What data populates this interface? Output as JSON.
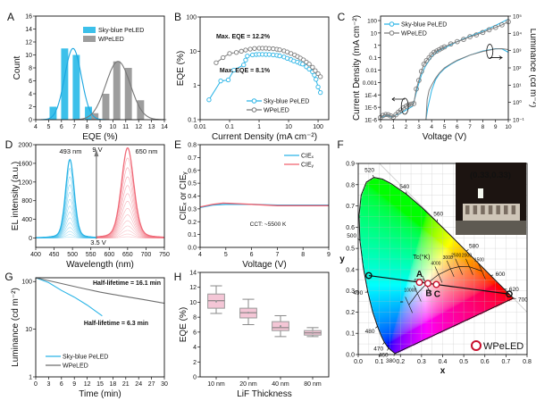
{
  "chart_data": [
    {
      "panel": "A",
      "type": "bar",
      "title": "",
      "xlabel": "EQE (%)",
      "ylabel": "Count",
      "xlim": [
        4,
        14
      ],
      "ylim": [
        0,
        16
      ],
      "x_ticks": [
        "4",
        "5",
        "6",
        "7",
        "8",
        "9",
        "10",
        "11",
        "12",
        "13",
        "14"
      ],
      "y_ticks": [
        "0",
        "2",
        "4",
        "6",
        "8",
        "10",
        "12",
        "14",
        "16"
      ],
      "legend": "top-center",
      "series": [
        {
          "name": "Sky-blue PeLED",
          "color": "#3cc0ea",
          "x": [
            5.35,
            6.25,
            7.15,
            8.1
          ],
          "values": [
            2,
            11,
            10,
            2
          ],
          "fit": {
            "type": "gaussian",
            "center": 6.9,
            "sigma": 0.65,
            "peak": 11,
            "color": "#1aa6e0"
          }
        },
        {
          "name": "WPeLED",
          "color": "#9d9d9d",
          "x": [
            8.6,
            9.45,
            10.3,
            11.2,
            12.15
          ],
          "values": [
            1,
            4,
            9,
            8,
            3
          ],
          "fit": {
            "type": "gaussian",
            "center": 10.4,
            "sigma": 0.95,
            "peak": 9,
            "color": "#777777"
          }
        }
      ]
    },
    {
      "panel": "B",
      "type": "line",
      "title": "",
      "xlabel": "Current Density (mA cm⁻²)",
      "ylabel": "EQE (%)",
      "xscale": "log",
      "yscale": "log",
      "xlim": [
        0.01,
        230
      ],
      "ylim": [
        0.1,
        100
      ],
      "x_ticks": [
        "0.01",
        "0.1",
        "1",
        "10",
        "100"
      ],
      "y_ticks": [
        "0.1",
        "1",
        "10",
        "100"
      ],
      "legend": "bottom-center",
      "annotations": [
        {
          "text": "Max. EQE = 12.2%",
          "color": "#8c8c8c"
        },
        {
          "text": "Max. EQE = 8.1%",
          "color": "#2ab4e6"
        }
      ],
      "series": [
        {
          "name": "Sky-blue PeLED",
          "color": "#2ab4e6",
          "x": [
            0.02,
            0.05,
            0.09,
            0.14,
            0.3,
            0.35,
            0.4,
            0.6,
            0.8,
            1,
            1.3,
            1.7,
            2.2,
            3,
            4,
            5,
            7,
            9,
            12,
            15,
            20,
            25,
            30,
            40,
            50,
            65,
            75,
            85,
            100,
            120
          ],
          "y": [
            0.38,
            1.35,
            1.45,
            2.8,
            4,
            5.5,
            7.2,
            7.8,
            8,
            8.1,
            8.1,
            8,
            8,
            7.8,
            7.6,
            7.3,
            6.8,
            6.2,
            5.7,
            5.2,
            4.8,
            4.4,
            4.2,
            3.5,
            3,
            2.5,
            2,
            1.5,
            0.9,
            0.62
          ]
        },
        {
          "name": "WPeLED",
          "color": "#7a7a7a",
          "x": [
            0.035,
            0.06,
            0.1,
            0.17,
            0.25,
            0.35,
            0.5,
            0.7,
            1,
            1.3,
            1.7,
            2.2,
            3,
            4,
            5,
            7,
            9,
            12,
            16,
            20,
            25,
            32,
            40,
            50,
            65,
            80,
            100,
            120
          ],
          "y": [
            4.6,
            6.5,
            8.6,
            9.2,
            10,
            10.8,
            11.5,
            12,
            12.2,
            12.2,
            12.2,
            12,
            11.8,
            11.4,
            11,
            10.3,
            9.5,
            8.6,
            7.8,
            7,
            6.3,
            5.6,
            4.8,
            4.2,
            3.4,
            2.7,
            2.2,
            1.8
          ]
        }
      ]
    },
    {
      "panel": "C",
      "type": "line",
      "title": "",
      "xlabel": "Voltage (V)",
      "ylabel": "Current Density (mA cm⁻²)",
      "y2label": "Luminance (cd m⁻²)",
      "xlim": [
        0,
        10
      ],
      "ylim": [
        1e-06,
        230
      ],
      "yscale": "log",
      "y2lim": [
        0.1,
        100000
      ],
      "y2scale": "log",
      "x_ticks": [
        "0",
        "1",
        "2",
        "3",
        "4",
        "5",
        "6",
        "7",
        "8",
        "9",
        "10"
      ],
      "y_ticks": [
        "1E-6",
        "1E-5",
        "1E-4",
        "0.001",
        "0.01",
        "0.1",
        "1",
        "10",
        "100"
      ],
      "y2_ticks": [
        0.1,
        1,
        10,
        100,
        1000,
        10000,
        100000
      ],
      "y2_tick_labels": [
        "10⁻¹",
        "10⁰",
        "10¹",
        "10²",
        "10³",
        "10⁴",
        "10⁵"
      ],
      "legend": "top-left",
      "series": [
        {
          "name": "Sky-blue PeLED",
          "color": "#2ab4e6",
          "axis": "left",
          "x": [
            0,
            0.5,
            0.9,
            1,
            1.5,
            2,
            2.5,
            2.7,
            2.9,
            3.2,
            3.5,
            4,
            4.5,
            5,
            6,
            7,
            8,
            9,
            10
          ],
          "y": [
            1.5e-06,
            2.2e-06,
            1.6e-06,
            2e-06,
            3e-06,
            6e-06,
            1.2e-05,
            6e-05,
            0.0004,
            0.004,
            0.02,
            0.12,
            0.35,
            0.6,
            2,
            5.5,
            14,
            40,
            130
          ]
        },
        {
          "name": "WPeLED",
          "color": "#7a7a7a",
          "axis": "left",
          "x": [
            0,
            0.2,
            0.4,
            0.6,
            0.8,
            1,
            1.2,
            1.4,
            1.6,
            1.8,
            2,
            2.2,
            2.4,
            2.6,
            2.8,
            3,
            3.2,
            3.4,
            3.6,
            3.8,
            4,
            4.2,
            4.4,
            4.6,
            4.8,
            5,
            5.5,
            6,
            6.5,
            7,
            7.5,
            8,
            8.5,
            9,
            9.5,
            10
          ],
          "y": [
            1.5e-06,
            2.2e-06,
            2.6e-06,
            2.5e-06,
            2e-06,
            1.6e-06,
            2.5e-06,
            4e-06,
            6e-06,
            9e-06,
            1.2e-05,
            1.6e-05,
            1.8e-05,
            2e-05,
            0.0003,
            0.0015,
            0.008,
            0.03,
            0.06,
            0.1,
            0.18,
            0.28,
            0.35,
            0.45,
            0.6,
            0.75,
            1.3,
            2,
            3,
            5,
            7,
            11,
            18,
            28,
            45,
            80
          ]
        },
        {
          "name": "Sky-blue PeLED",
          "color": "#2ab4e6",
          "axis": "right",
          "x": [
            3.55,
            3.7,
            4,
            4.3,
            4.6,
            5,
            5.5,
            6,
            7,
            8,
            9,
            9.5,
            10
          ],
          "y": [
            0.1,
            0.5,
            5,
            20,
            45,
            90,
            160,
            260,
            550,
            950,
            1300,
            1250,
            800
          ]
        },
        {
          "name": "WPeLED",
          "color": "#7a7a7a",
          "axis": "right",
          "x": [
            3.55,
            3.65,
            3.8,
            4,
            4.3,
            4.6,
            5,
            5.5,
            6,
            7,
            8,
            9,
            9.5,
            10
          ],
          "y": [
            0.1,
            1.5,
            5,
            10,
            25,
            50,
            100,
            170,
            280,
            550,
            900,
            1250,
            1300,
            1150
          ]
        }
      ]
    },
    {
      "panel": "D",
      "type": "line",
      "title": "",
      "xlabel": "Wavelength (nm)",
      "ylabel": "EL intensity (a.u.)",
      "xlim": [
        400,
        750
      ],
      "ylim": [
        -200,
        2000
      ],
      "x_ticks": [
        "400",
        "450",
        "500",
        "550",
        "600",
        "650",
        "700",
        "750"
      ],
      "y_ticks": [
        "0",
        "400",
        "800",
        "1200",
        "1600",
        "2000"
      ],
      "peaks": [
        {
          "label": "493 nm",
          "wavelength": 493,
          "max_intensity": 1680,
          "fwhm": 28,
          "color": "#2ab4e6"
        },
        {
          "label": "650 nm",
          "wavelength": 650,
          "max_intensity": 1930,
          "fwhm": 40,
          "color": "#f06a78"
        }
      ],
      "voltage_start": "3.5 V",
      "voltage_end": "9 V"
    },
    {
      "panel": "E",
      "type": "line",
      "title": "",
      "xlabel": "Voltage (V)",
      "ylabel": "CIEₓ or CIEᵧ",
      "xlim": [
        4,
        9
      ],
      "ylim": [
        0,
        0.8
      ],
      "x_ticks": [
        "4",
        "5",
        "6",
        "7",
        "8",
        "9"
      ],
      "y_ticks": [
        "0.0",
        "0.1",
        "0.2",
        "0.3",
        "0.4",
        "0.5",
        "0.6",
        "0.7",
        "0.8"
      ],
      "legend": "top-right",
      "annotation": "CCT: ~5500 K",
      "series": [
        {
          "name": "CIEₓ",
          "color": "#2ab4e6",
          "x": [
            4,
            4.5,
            5,
            6,
            7,
            8,
            9
          ],
          "y": [
            0.31,
            0.33,
            0.335,
            0.335,
            0.33,
            0.33,
            0.33
          ]
        },
        {
          "name": "CIEᵧ",
          "color": "#f0606e",
          "x": [
            4,
            4.5,
            4.9,
            5.5,
            6,
            7,
            8,
            9
          ],
          "y": [
            0.315,
            0.335,
            0.345,
            0.34,
            0.335,
            0.325,
            0.325,
            0.325
          ]
        }
      ]
    },
    {
      "panel": "F",
      "type": "scatter",
      "title": "",
      "xlabel": "x",
      "ylabel": "y",
      "xlim": [
        0,
        0.8
      ],
      "ylim": [
        0,
        0.9
      ],
      "x_ticks": [
        "0.0",
        "0.1",
        "0.2",
        "0.3",
        "0.4",
        "0.5",
        "0.6",
        "0.7",
        "0.8"
      ],
      "y_ticks": [
        "0.0",
        "0.1",
        "0.2",
        "0.3",
        "0.4",
        "0.5",
        "0.6",
        "0.7",
        "0.8",
        "0.9"
      ],
      "spectral_locus": [
        {
          "nm": "380",
          "x": 0.1741,
          "y": 0.005,
          "show": true
        },
        {
          "nm": "460",
          "x": 0.144,
          "y": 0.0297,
          "show": true
        },
        {
          "nm": "470",
          "x": 0.1241,
          "y": 0.0578,
          "show": true
        },
        {
          "nm": "475",
          "x": 0.1096,
          "y": 0.0868,
          "show": false
        },
        {
          "nm": "480",
          "x": 0.0913,
          "y": 0.1327,
          "show": true
        },
        {
          "nm": "485",
          "x": 0.0687,
          "y": 0.2007,
          "show": false
        },
        {
          "nm": "490",
          "x": 0.0454,
          "y": 0.295,
          "show": true
        },
        {
          "nm": "495",
          "x": 0.0235,
          "y": 0.4127,
          "show": false
        },
        {
          "nm": "500",
          "x": 0.0082,
          "y": 0.5384,
          "show": true
        },
        {
          "nm": "505",
          "x": 0.0039,
          "y": 0.6548,
          "show": false
        },
        {
          "nm": "510",
          "x": 0.0139,
          "y": 0.7502,
          "show": false
        },
        {
          "nm": "515",
          "x": 0.0389,
          "y": 0.812,
          "show": false
        },
        {
          "nm": "520",
          "x": 0.0743,
          "y": 0.8338,
          "show": true
        },
        {
          "nm": "525",
          "x": 0.1142,
          "y": 0.8262,
          "show": false
        },
        {
          "nm": "530",
          "x": 0.1547,
          "y": 0.8059,
          "show": false
        },
        {
          "nm": "540",
          "x": 0.2296,
          "y": 0.7543,
          "show": true
        },
        {
          "nm": "550",
          "x": 0.3016,
          "y": 0.6923,
          "show": false
        },
        {
          "nm": "560",
          "x": 0.3731,
          "y": 0.6245,
          "show": true
        },
        {
          "nm": "570",
          "x": 0.4441,
          "y": 0.5547,
          "show": false
        },
        {
          "nm": "580",
          "x": 0.5125,
          "y": 0.4866,
          "show": true
        },
        {
          "nm": "590",
          "x": 0.5752,
          "y": 0.4242,
          "show": false
        },
        {
          "nm": "600",
          "x": 0.627,
          "y": 0.3725,
          "show": true
        },
        {
          "nm": "620",
          "x": 0.6915,
          "y": 0.3083,
          "show": true
        },
        {
          "nm": "640",
          "x": 0.719,
          "y": 0.2809,
          "show": false
        },
        {
          "nm": "700",
          "x": 0.7347,
          "y": 0.2653,
          "show": true
        }
      ],
      "planckian_label": "Tc(°K)",
      "planckian_locus": [
        {
          "label": "1500",
          "x": 0.5857,
          "y": 0.3931
        },
        {
          "label": "2000",
          "x": 0.5267,
          "y": 0.4133
        },
        {
          "label": "2500",
          "x": 0.477,
          "y": 0.4137
        },
        {
          "label": "3000",
          "x": 0.4369,
          "y": 0.4041
        },
        {
          "label": "4000",
          "x": 0.3805,
          "y": 0.3768
        },
        {
          "label": "6000",
          "x": 0.3221,
          "y": 0.3318
        },
        {
          "label": "10000",
          "x": 0.2807,
          "y": 0.2883
        },
        {
          "label": "∞",
          "x": 0.2399,
          "y": 0.2341
        }
      ],
      "points": [
        {
          "label": "A",
          "x": 0.29,
          "y": 0.34
        },
        {
          "label": "B",
          "x": 0.33,
          "y": 0.335
        },
        {
          "label": "C",
          "x": 0.37,
          "y": 0.33
        }
      ],
      "endpoints": [
        {
          "x": 0.05,
          "y": 0.372
        },
        {
          "x": 0.715,
          "y": 0.285
        }
      ],
      "point_color": "#c8102e",
      "legend": {
        "label": "WPeLED",
        "placement": "bottom-right"
      },
      "inset_photo_text": "(0.33,0.33)"
    },
    {
      "panel": "G",
      "type": "line",
      "title": "",
      "xlabel": "Time (min)",
      "ylabel": "Luminance (cd m⁻²)",
      "xlim": [
        0,
        30
      ],
      "ylim": [
        1,
        120
      ],
      "yscale": "log",
      "x_ticks": [
        "0",
        "3",
        "6",
        "9",
        "12",
        "15",
        "18",
        "21",
        "24",
        "27",
        "30"
      ],
      "y_ticks": [
        "1",
        "10",
        "100"
      ],
      "legend": "bottom-left",
      "annotations": [
        {
          "text": "Half-lifetime = 16.1 min",
          "color": "#8c8c8c"
        },
        {
          "text": "Half-lifetime = 6.3 min",
          "color": "#2ab4e6"
        }
      ],
      "series": [
        {
          "name": "Sky-blue PeLED",
          "color": "#2ab4e6",
          "x": [
            0,
            3,
            6,
            9,
            12,
            15.5
          ],
          "y": [
            120,
            95,
            65,
            47,
            32,
            19
          ]
        },
        {
          "name": "WPeLED",
          "color": "#6e6e6e",
          "x": [
            0,
            5,
            10,
            15,
            20,
            25,
            30
          ],
          "y": [
            120,
            95,
            75,
            60,
            50,
            42,
            35
          ]
        }
      ]
    },
    {
      "panel": "H",
      "type": "box",
      "title": "",
      "xlabel": "LiF Thickness",
      "ylabel": "EQE (%)",
      "ylim": [
        0,
        14
      ],
      "y_ticks": [
        "0",
        "2",
        "4",
        "6",
        "8",
        "10",
        "12",
        "14"
      ],
      "categories": [
        "10 nm",
        "20 nm",
        "40 nm",
        "80 nm"
      ],
      "box_color": "#f4c6d6",
      "boxes": [
        {
          "min": 8.5,
          "q1": 9.2,
          "median": 10.2,
          "mean": 10.1,
          "q3": 11.1,
          "max": 12.2
        },
        {
          "min": 7.0,
          "q1": 7.9,
          "median": 8.6,
          "mean": 8.6,
          "q3": 9.2,
          "max": 10.4
        },
        {
          "min": 5.4,
          "q1": 6.2,
          "median": 6.6,
          "mean": 6.8,
          "q3": 7.4,
          "max": 8.2
        },
        {
          "min": 5.4,
          "q1": 5.6,
          "median": 5.9,
          "mean": 5.9,
          "q3": 6.2,
          "max": 6.6
        }
      ]
    }
  ]
}
